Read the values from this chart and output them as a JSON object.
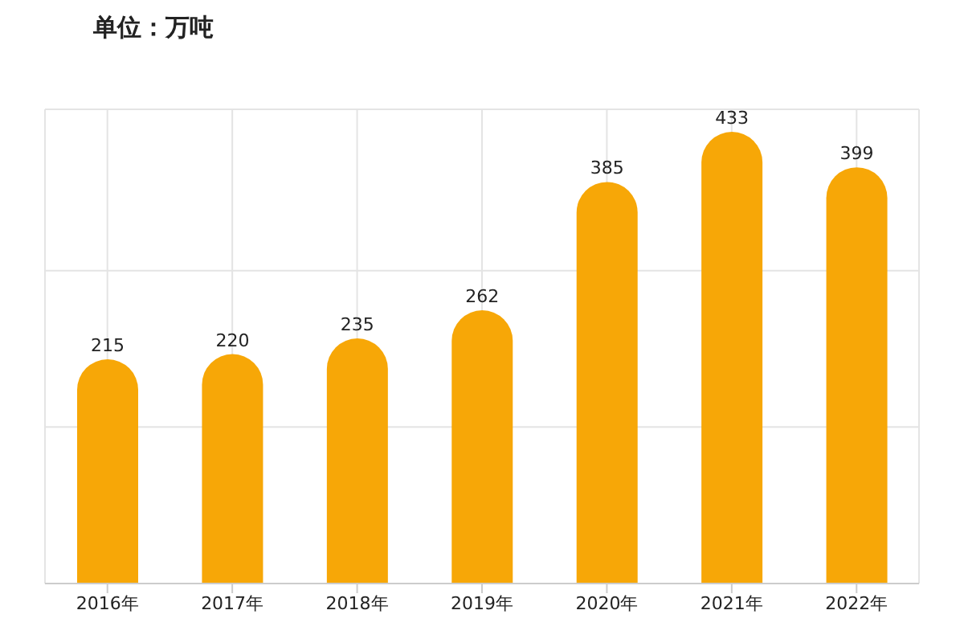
{
  "chart_data": {
    "type": "bar",
    "ylabel": "单位：万吨",
    "categories": [
      "2016年",
      "2017年",
      "2018年",
      "2019年",
      "2020年",
      "2021年",
      "2022年"
    ],
    "values": [
      215,
      220,
      235,
      262,
      385,
      433,
      399
    ],
    "color": "#f7a707",
    "data_labels": true,
    "grid": true
  }
}
